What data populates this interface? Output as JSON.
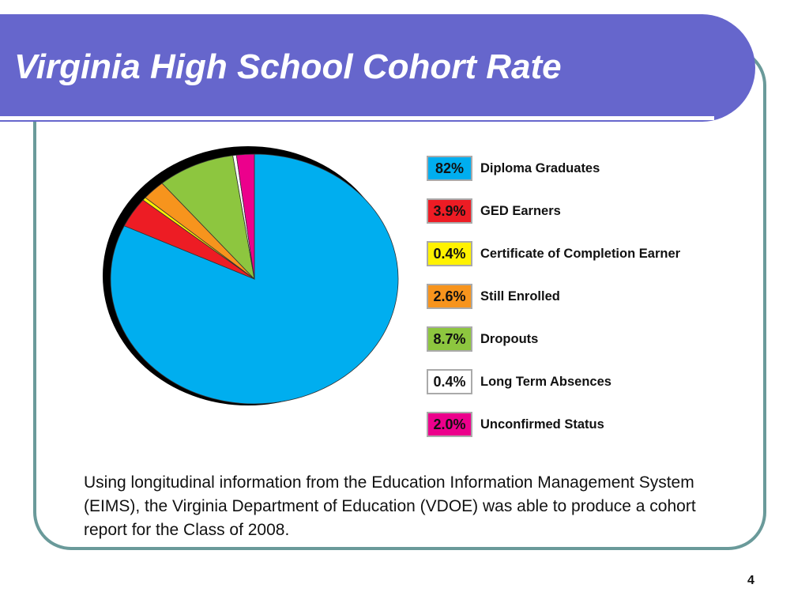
{
  "slide": {
    "title": "Virginia High School Cohort Rate",
    "caption": "Using longitudinal information from the Education Information Management System (EIMS), the Virginia Department of Education (VDOE) was able to produce a cohort report for the Class of 2008.",
    "page_number": "4"
  },
  "colors": {
    "title_bar": "#6666cc",
    "frame_border": "#6a9a9a"
  },
  "chart_data": {
    "type": "pie",
    "title": "",
    "categories": [
      "Diploma Graduates",
      "GED Earners",
      "Certificate of Completion Earner",
      "Still Enrolled",
      "Dropouts",
      "Long Term Absences",
      "Unconfirmed Status"
    ],
    "values": [
      82,
      3.9,
      0.4,
      2.6,
      8.7,
      0.4,
      2.0
    ],
    "value_labels": [
      "82%",
      "3.9%",
      "0.4%",
      "2.6%",
      "8.7%",
      "0.4%",
      "2.0%"
    ],
    "colors": [
      "#00aeef",
      "#ed1c24",
      "#fff200",
      "#f7941d",
      "#8dc63f",
      "#ffffff",
      "#ec008c"
    ],
    "legend": "right"
  }
}
